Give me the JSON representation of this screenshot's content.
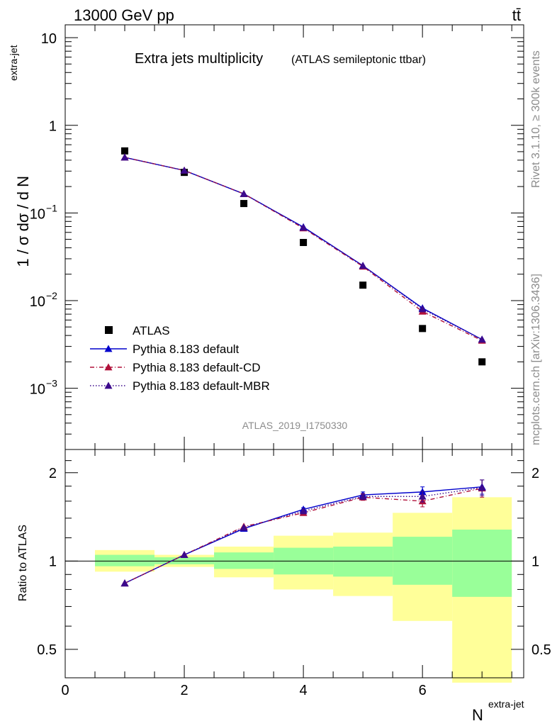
{
  "header": {
    "beam": "13000 GeV pp",
    "process": "tt̄"
  },
  "side_labels": {
    "rivet": "Rivet 3.1.10, ≥ 300k events",
    "mcplots": "mcplots.cern.ch [arXiv:1306.3436]"
  },
  "chart_data": [
    {
      "type": "scatter",
      "panel": "main",
      "title": "Extra jets multiplicity",
      "subtitle": "(ATLAS semileptonic ttbar)",
      "watermark": "ATLAS_2019_I1750330",
      "ylabel_main": "1 / σ dσ / d N",
      "ylabel_sup": "extra-jet",
      "yscale": "log",
      "ylim": [
        0.0002,
        14
      ],
      "xlim": [
        0,
        7.7
      ],
      "y_ticks": [
        {
          "v": 10,
          "m": "10",
          "e": ""
        },
        {
          "v": 1,
          "m": "1",
          "e": ""
        },
        {
          "v": 0.1,
          "m": "10",
          "e": "−1"
        },
        {
          "v": 0.01,
          "m": "10",
          "e": "−2"
        },
        {
          "v": 0.001,
          "m": "10",
          "e": "−3"
        }
      ],
      "x": [
        1,
        2,
        3,
        4,
        5,
        6,
        7
      ],
      "series": [
        {
          "name": "ATLAS",
          "values": [
            0.51,
            0.29,
            0.128,
            0.046,
            0.015,
            0.0048,
            0.002
          ],
          "color": "#000000",
          "marker": "square",
          "line": "none"
        },
        {
          "name": "Pythia 8.183 default",
          "values": [
            0.43,
            0.305,
            0.165,
            0.069,
            0.025,
            0.0082,
            0.0036
          ],
          "color": "#0000cc",
          "marker": "triangle",
          "line": "solid"
        },
        {
          "name": "Pythia 8.183 default-CD",
          "values": [
            0.43,
            0.305,
            0.165,
            0.067,
            0.0245,
            0.0075,
            0.0035
          ],
          "color": "#b0103a",
          "marker": "triangle",
          "line": "dashdot"
        },
        {
          "name": "Pythia 8.183 default-MBR",
          "values": [
            0.43,
            0.305,
            0.165,
            0.068,
            0.025,
            0.008,
            0.0036
          ],
          "color": "#3c0a8c",
          "marker": "triangle",
          "line": "dotted"
        }
      ]
    },
    {
      "type": "line",
      "panel": "ratio",
      "ylabel": "Ratio to ATLAS",
      "xlabel_main": "N",
      "xlabel_sup": "extra-jet",
      "yscale": "log",
      "ylim": [
        0.4,
        2.4
      ],
      "xlim": [
        0,
        7.7
      ],
      "x_ticks": [
        "0",
        "2",
        "4",
        "6"
      ],
      "y_ticks": [
        {
          "v": 2,
          "label": "2"
        },
        {
          "v": 1,
          "label": "1"
        },
        {
          "v": 0.5,
          "label": "0.5"
        }
      ],
      "bands": [
        {
          "x0": 0.5,
          "x1": 1.5,
          "g_lo": 0.96,
          "g_hi": 1.05,
          "y_lo": 0.92,
          "y_hi": 1.09
        },
        {
          "x0": 1.5,
          "x1": 2.5,
          "g_lo": 0.975,
          "g_hi": 1.03,
          "y_lo": 0.955,
          "y_hi": 1.05
        },
        {
          "x0": 2.5,
          "x1": 3.5,
          "g_lo": 0.94,
          "g_hi": 1.07,
          "y_lo": 0.88,
          "y_hi": 1.12
        },
        {
          "x0": 3.5,
          "x1": 4.5,
          "g_lo": 0.9,
          "g_hi": 1.11,
          "y_lo": 0.8,
          "y_hi": 1.22
        },
        {
          "x0": 4.5,
          "x1": 5.5,
          "g_lo": 0.885,
          "g_hi": 1.12,
          "y_lo": 0.76,
          "y_hi": 1.25
        },
        {
          "x0": 5.5,
          "x1": 6.5,
          "g_lo": 0.83,
          "g_hi": 1.21,
          "y_lo": 0.625,
          "y_hi": 1.46
        },
        {
          "x0": 6.5,
          "x1": 7.5,
          "g_lo": 0.755,
          "g_hi": 1.28,
          "y_lo": 0.385,
          "y_hi": 1.65
        }
      ],
      "x": [
        1,
        2,
        3,
        4,
        5,
        6,
        7
      ],
      "series": [
        {
          "name": "Pythia 8.183 default",
          "values": [
            0.84,
            1.05,
            1.29,
            1.5,
            1.68,
            1.72,
            1.79
          ],
          "errors": [
            0,
            0,
            0,
            0.02,
            0.04,
            0.07,
            0.1
          ],
          "color": "#0000cc",
          "line": "solid"
        },
        {
          "name": "Pythia 8.183 default-CD",
          "values": [
            0.84,
            1.05,
            1.31,
            1.46,
            1.65,
            1.6,
            1.77
          ],
          "errors": [
            0,
            0,
            0,
            0.02,
            0.04,
            0.07,
            0.12
          ],
          "color": "#b0103a",
          "line": "dashdot"
        },
        {
          "name": "Pythia 8.183 default-MBR",
          "values": [
            0.84,
            1.05,
            1.3,
            1.48,
            1.66,
            1.66,
            1.78
          ],
          "errors": [
            0,
            0,
            0,
            0.02,
            0.04,
            0.07,
            0.11
          ],
          "color": "#3c0a8c",
          "line": "dotted"
        }
      ],
      "band_colors": {
        "green": "#99ff99",
        "yellow": "#ffff99"
      }
    }
  ]
}
